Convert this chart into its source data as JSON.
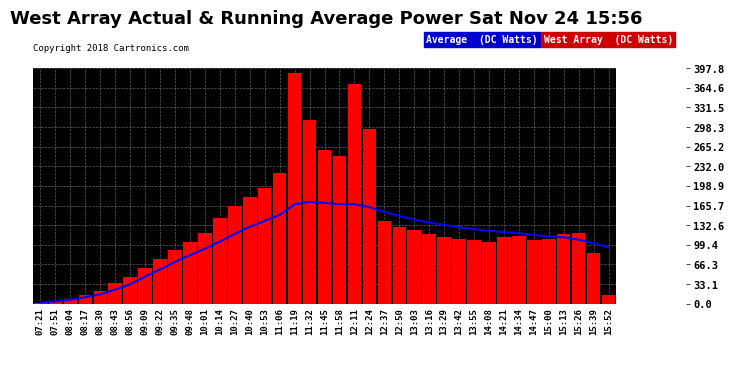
{
  "title": "West Array Actual & Running Average Power Sat Nov 24 15:56",
  "copyright": "Copyright 2018 Cartronics.com",
  "ymax": 397.8,
  "ymin": 0.0,
  "yticks": [
    0.0,
    33.1,
    66.3,
    99.4,
    132.6,
    165.7,
    198.9,
    232.0,
    265.2,
    298.3,
    331.5,
    364.6,
    397.8
  ],
  "bg_color": "#ffffff",
  "plot_bg_color": "#000000",
  "grid_color": "#888888",
  "bar_color": "#ff0000",
  "line_color": "#0000ff",
  "title_color": "#000000",
  "title_fontsize": 13,
  "tick_label_fontsize": 7.5,
  "x_labels": [
    "07:21",
    "07:51",
    "08:04",
    "08:17",
    "08:30",
    "08:43",
    "08:56",
    "09:09",
    "09:22",
    "09:35",
    "09:48",
    "10:01",
    "10:14",
    "10:27",
    "10:40",
    "10:53",
    "11:06",
    "11:19",
    "11:32",
    "11:45",
    "11:58",
    "12:11",
    "12:24",
    "12:37",
    "12:50",
    "13:03",
    "13:16",
    "13:29",
    "13:42",
    "13:55",
    "14:08",
    "14:21",
    "14:34",
    "14:47",
    "15:00",
    "15:13",
    "15:26",
    "15:39",
    "15:52"
  ],
  "west_array": [
    2,
    4,
    8,
    15,
    22,
    35,
    45,
    60,
    75,
    90,
    105,
    120,
    145,
    165,
    180,
    195,
    220,
    390,
    310,
    260,
    250,
    370,
    295,
    140,
    130,
    125,
    118,
    112,
    110,
    108,
    105,
    112,
    115,
    108,
    110,
    118,
    120,
    85,
    15
  ],
  "avg_line": [
    2,
    4,
    7,
    11,
    16,
    24,
    33,
    46,
    58,
    71,
    82,
    93,
    105,
    118,
    130,
    140,
    150,
    168,
    172,
    170,
    168,
    168,
    163,
    155,
    148,
    142,
    137,
    133,
    129,
    126,
    123,
    121,
    119,
    116,
    114,
    112,
    108,
    102,
    95
  ]
}
